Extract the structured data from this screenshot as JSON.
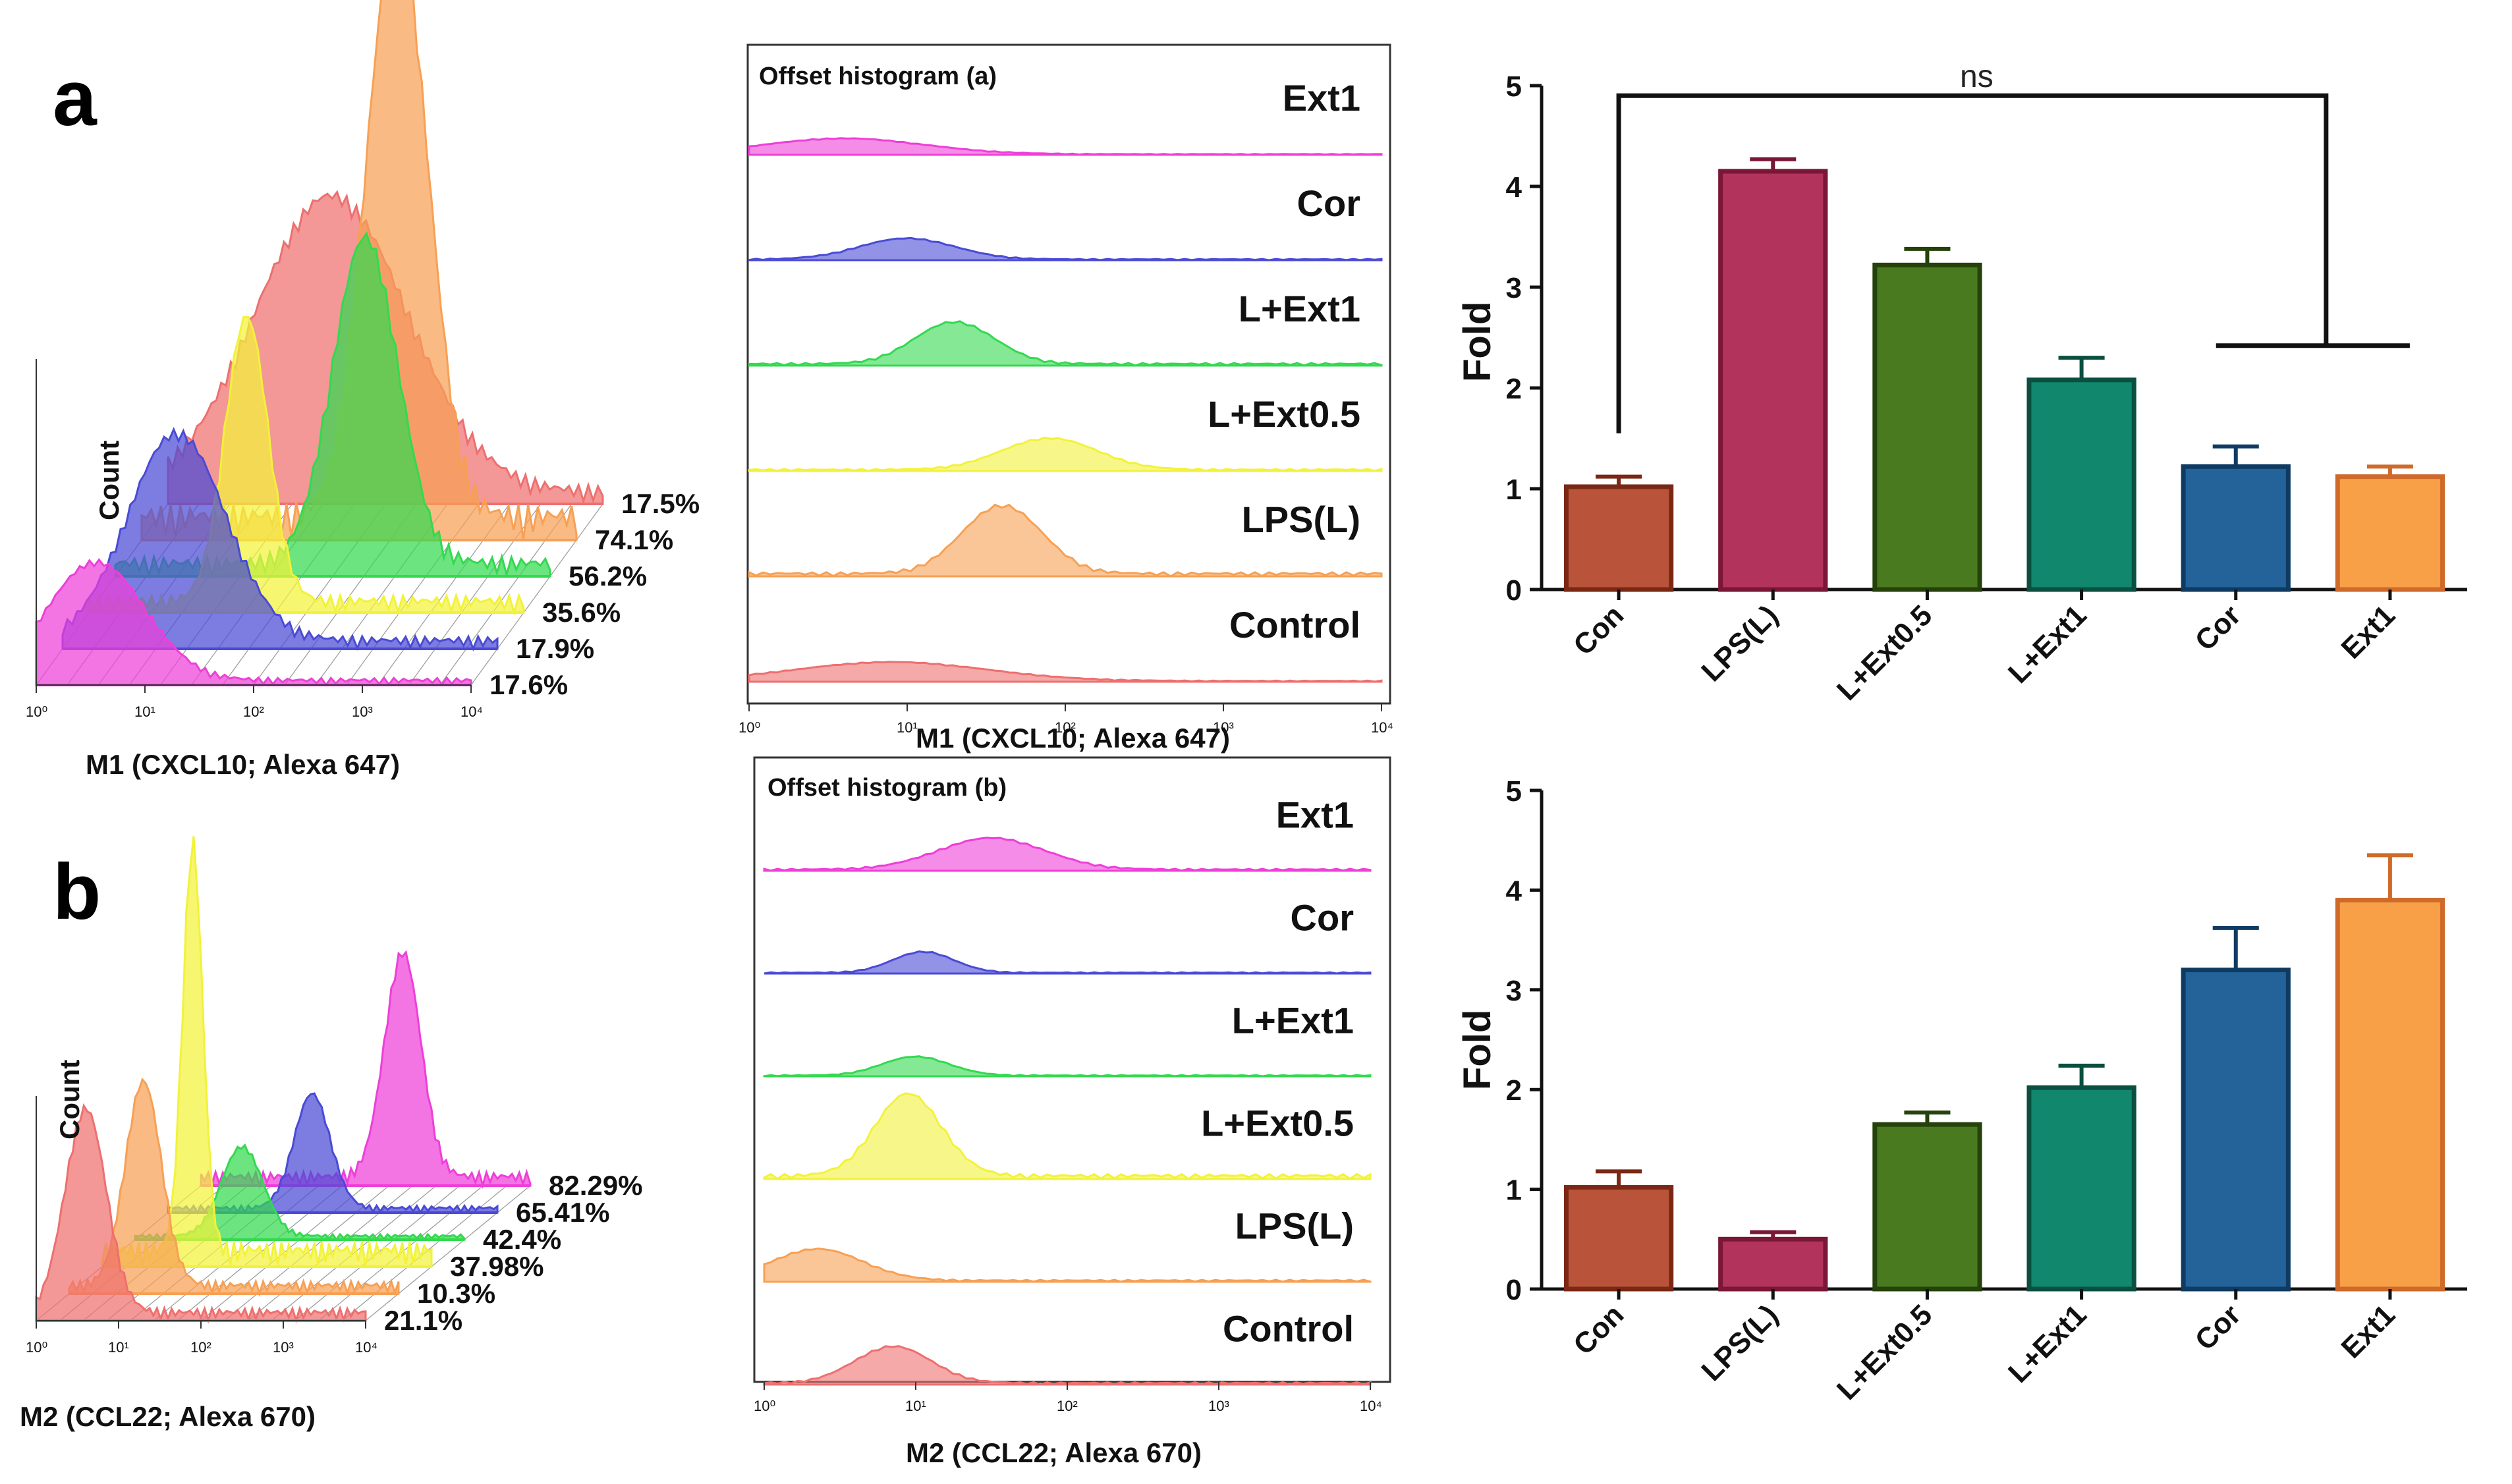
{
  "panels": [
    {
      "letter": "a",
      "stack_axis_label": "M1 (CXCL10; Alexa 647)",
      "count_label": "Count",
      "overlay_title": "Offset histogram (a)",
      "overlay_axis_label": "M1 (CXCL10; Alexa 647)",
      "bar_ylabel": "Fold",
      "ns_label": "ns"
    },
    {
      "letter": "b",
      "stack_axis_label": "M2 (CCL22; Alexa 670)",
      "count_label": "Count",
      "overlay_title": "Offset histogram (b)",
      "overlay_axis_label": "M2 (CCL22; Alexa 670)",
      "bar_ylabel": "Fold"
    }
  ],
  "colors": {
    "Control": "#ee6f6f",
    "LPS(L)": "#f7a054",
    "L+Ext0.5": "#f2f23a",
    "L+Ext1": "#33d94f",
    "Cor": "#4a4ad6",
    "Ext1": "#ee3fd8",
    "bars": [
      "#b9533a",
      "#b2345d",
      "#4a7a1f",
      "#11876e",
      "#23639a",
      "#f7a047"
    ],
    "bar_edges": [
      "#7a2814",
      "#7a1636",
      "#24420a",
      "#0a4f3f",
      "#0f3b63",
      "#cf6a2a"
    ]
  },
  "chart_data": [
    {
      "type": "histogram",
      "panel": "a",
      "style": "3d-offset-stack",
      "xlabel": "M1 (CXCL10; Alexa 647)",
      "ylabel": "Count",
      "x_scale": "log",
      "xlim": [
        1,
        10000
      ],
      "x_ticks": [
        "10⁰",
        "10¹",
        "10²",
        "10³",
        "10⁴"
      ],
      "series": [
        {
          "name": "Control",
          "percent": "17.5%",
          "peak_log10": 1.5,
          "height": 0.5,
          "width": 0.7
        },
        {
          "name": "LPS(L)",
          "percent": "74.1%",
          "peak_log10": 2.35,
          "height": 1.0,
          "width": 0.28
        },
        {
          "name": "L+Ext1",
          "percent": "56.2%",
          "peak_log10": 2.3,
          "height": 0.55,
          "width": 0.3
        },
        {
          "name": "L+Ext0.5",
          "percent": "35.6%",
          "peak_log10": 1.45,
          "height": 0.48,
          "width": 0.2
        },
        {
          "name": "Cor",
          "percent": "17.9%",
          "peak_log10": 1.05,
          "height": 0.35,
          "width": 0.45
        },
        {
          "name": "Ext1",
          "percent": "17.6%",
          "peak_log10": 0.55,
          "height": 0.2,
          "width": 0.45
        }
      ]
    },
    {
      "type": "histogram",
      "panel": "a",
      "style": "offset-overlay",
      "title": "Offset histogram (a)",
      "xlabel": "M1 (CXCL10; Alexa 647)",
      "x_scale": "log",
      "xlim": [
        1,
        10000
      ],
      "x_ticks": [
        "10⁰",
        "10¹",
        "10²",
        "10³",
        "10⁴"
      ],
      "series": [
        {
          "name": "Ext1",
          "peak_log10": 0.6,
          "height": 0.15,
          "width": 0.5
        },
        {
          "name": "Cor",
          "peak_log10": 1.0,
          "height": 0.2,
          "width": 0.3
        },
        {
          "name": "L+Ext1",
          "peak_log10": 1.3,
          "height": 0.4,
          "width": 0.25
        },
        {
          "name": "L+Ext0.5",
          "peak_log10": 1.9,
          "height": 0.3,
          "width": 0.3
        },
        {
          "name": "LPS(L)",
          "peak_log10": 1.6,
          "height": 0.65,
          "width": 0.25
        },
        {
          "name": "Control",
          "peak_log10": 0.9,
          "height": 0.18,
          "width": 0.6
        }
      ]
    },
    {
      "type": "bar",
      "panel": "a",
      "categories": [
        "Con",
        "LPS(L)",
        "L+Ext0.5",
        "L+Ext1",
        "Cor",
        "Ext1"
      ],
      "values": [
        1.02,
        4.15,
        3.22,
        2.08,
        1.22,
        1.12
      ],
      "errors": [
        0.1,
        0.12,
        0.16,
        0.22,
        0.2,
        0.1
      ],
      "ylabel": "Fold",
      "ylim": [
        0,
        5
      ],
      "yticks": [
        0,
        1,
        2,
        3,
        4,
        5
      ],
      "annotation": {
        "text": "ns",
        "from": "Con",
        "to": [
          "Cor",
          "Ext1"
        ]
      }
    },
    {
      "type": "histogram",
      "panel": "b",
      "style": "3d-offset-stack",
      "xlabel": "M2 (CCL22; Alexa 670)",
      "ylabel": "Count",
      "x_scale": "log",
      "xlim": [
        1,
        10000
      ],
      "x_ticks": [
        "10⁰",
        "10¹",
        "10²",
        "10³",
        "10⁴"
      ],
      "series": [
        {
          "name": "Ext1",
          "percent": "82.29%",
          "peak_log10": 2.45,
          "height": 0.55,
          "width": 0.22
        },
        {
          "name": "Cor",
          "percent": "65.41%",
          "peak_log10": 1.75,
          "height": 0.28,
          "width": 0.22
        },
        {
          "name": "L+Ext1",
          "percent": "42.4%",
          "peak_log10": 1.3,
          "height": 0.22,
          "width": 0.25
        },
        {
          "name": "L+Ext0.5",
          "percent": "37.98%",
          "peak_log10": 1.1,
          "height": 1.0,
          "width": 0.12
        },
        {
          "name": "LPS(L)",
          "percent": "10.3%",
          "peak_log10": 0.9,
          "height": 0.5,
          "width": 0.22
        },
        {
          "name": "Control",
          "percent": "21.1%",
          "peak_log10": 0.6,
          "height": 0.5,
          "width": 0.25
        }
      ]
    },
    {
      "type": "histogram",
      "panel": "b",
      "style": "offset-overlay",
      "title": "Offset histogram (b)",
      "xlabel": "M2 (CCL22; Alexa 670)",
      "x_scale": "log",
      "xlim": [
        1,
        10000
      ],
      "x_ticks": [
        "10⁰",
        "10¹",
        "10²",
        "10³",
        "10⁴"
      ],
      "series": [
        {
          "name": "Ext1",
          "peak_log10": 1.5,
          "height": 0.3,
          "width": 0.35
        },
        {
          "name": "Cor",
          "peak_log10": 1.05,
          "height": 0.2,
          "width": 0.2
        },
        {
          "name": "L+Ext1",
          "peak_log10": 1.0,
          "height": 0.18,
          "width": 0.22
        },
        {
          "name": "L+Ext0.5",
          "peak_log10": 0.95,
          "height": 0.78,
          "width": 0.22
        },
        {
          "name": "LPS(L)",
          "peak_log10": 0.35,
          "height": 0.3,
          "width": 0.3
        },
        {
          "name": "Control",
          "peak_log10": 0.85,
          "height": 0.35,
          "width": 0.25
        }
      ]
    },
    {
      "type": "bar",
      "panel": "b",
      "categories": [
        "Con",
        "LPS(L)",
        "L+Ext0.5",
        "L+Ext1",
        "Cor",
        "Ext1"
      ],
      "values": [
        1.02,
        0.5,
        1.65,
        2.02,
        3.2,
        3.9
      ],
      "errors": [
        0.16,
        0.07,
        0.12,
        0.22,
        0.42,
        0.45
      ],
      "ylabel": "Fold",
      "ylim": [
        0,
        5
      ],
      "yticks": [
        0,
        1,
        2,
        3,
        4,
        5
      ]
    }
  ]
}
